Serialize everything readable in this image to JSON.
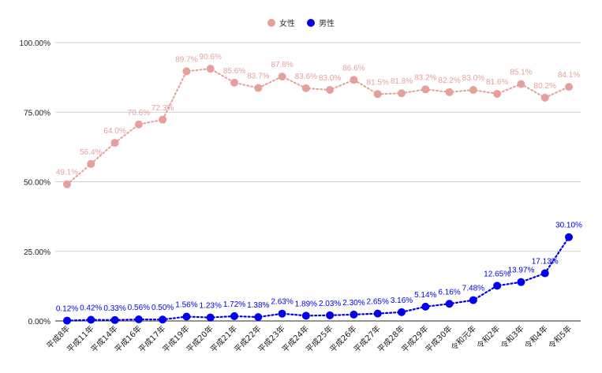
{
  "chart_data": {
    "type": "line",
    "categories": [
      "平成8年",
      "平成11年",
      "平成14年",
      "平成16年",
      "平成17年",
      "平成19年",
      "平成20年",
      "平成21年",
      "平成22年",
      "平成23年",
      "平成24年",
      "平成25年",
      "平成26年",
      "平成27年",
      "平成28年",
      "平成29年",
      "平成30年",
      "令和元年",
      "令和2年",
      "令和3年",
      "令和4年",
      "令和5年"
    ],
    "ylim": [
      0,
      100
    ],
    "yticks": [
      "0.00%",
      "25.00%",
      "50.00%",
      "75.00%",
      "100.00%"
    ],
    "grid": true,
    "legend_position": "top",
    "series": [
      {
        "name": "女性",
        "color": "#e6a09c",
        "values": [
          49.1,
          56.4,
          64.0,
          70.6,
          72.3,
          89.7,
          90.6,
          85.6,
          83.7,
          87.8,
          83.6,
          83.0,
          86.6,
          81.5,
          81.8,
          83.2,
          82.2,
          83.0,
          81.6,
          85.1,
          80.2,
          84.1
        ],
        "labels": [
          "49.1%",
          "56.4%",
          "64.0%",
          "70.6%",
          "72.3%",
          "89.7%",
          "90.6%",
          "85.6%",
          "83.7%",
          "87.8%",
          "83.6%",
          "83.0%",
          "86.6%",
          "81.5%",
          "81.8%",
          "83.2%",
          "82.2%",
          "83.0%",
          "81.6%",
          "85.1%",
          "80.2%",
          "84.1%"
        ]
      },
      {
        "name": "男性",
        "color": "#0000ee",
        "values": [
          0.12,
          0.42,
          0.33,
          0.56,
          0.5,
          1.56,
          1.23,
          1.72,
          1.38,
          2.63,
          1.89,
          2.03,
          2.3,
          2.65,
          3.16,
          5.14,
          6.16,
          7.48,
          12.65,
          13.97,
          17.13,
          30.1
        ],
        "labels": [
          "0.12%",
          "0.42%",
          "0.33%",
          "0.56%",
          "0.50%",
          "1.56%",
          "1.23%",
          "1.72%",
          "1.38%",
          "2.63%",
          "1.89%",
          "2.03%",
          "2.30%",
          "2.65%",
          "3.16%",
          "5.14%",
          "6.16%",
          "7.48%",
          "12.65%",
          "13.97%",
          "17.13%",
          "30.10%"
        ]
      }
    ]
  }
}
